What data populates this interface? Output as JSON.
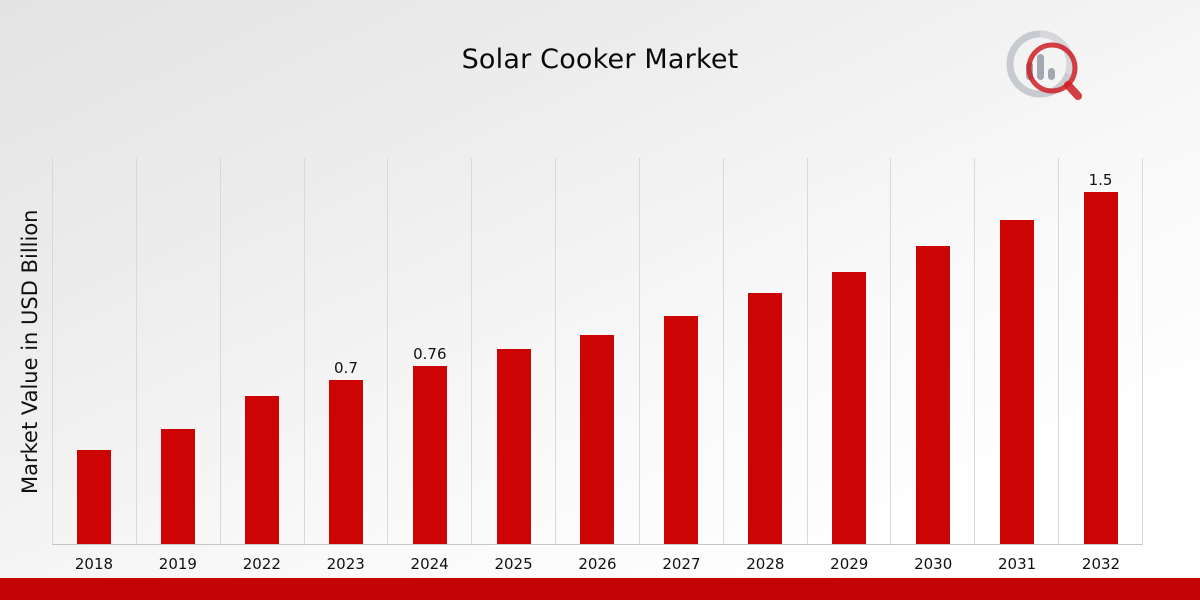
{
  "chart_data": {
    "type": "bar",
    "title": "Solar Cooker Market",
    "ylabel": "Market Value in USD Billion",
    "xlabel": "",
    "categories": [
      "2018",
      "2019",
      "2022",
      "2023",
      "2024",
      "2025",
      "2026",
      "2027",
      "2028",
      "2029",
      "2030",
      "2031",
      "2032"
    ],
    "values": [
      0.4,
      0.49,
      0.63,
      0.7,
      0.76,
      0.83,
      0.89,
      0.97,
      1.07,
      1.16,
      1.27,
      1.38,
      1.5
    ],
    "data_labels": [
      "",
      "",
      "",
      "0.7",
      "0.76",
      "",
      "",
      "",
      "",
      "",
      "",
      "",
      "1.5"
    ],
    "bar_color": "#cc0404",
    "ylim": [
      0,
      1.65
    ],
    "grid": "vertical-only",
    "legend": "none"
  },
  "footer": {
    "band_color": "#c40404"
  },
  "logo": {
    "ring_color": "#b9bdc6",
    "bars_color": "#9aa0ab",
    "accent_color": "#c9080e"
  }
}
